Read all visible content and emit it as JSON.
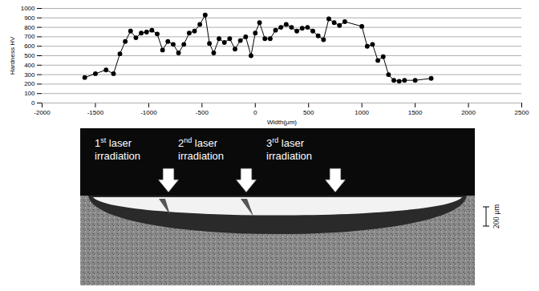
{
  "chart_data": {
    "type": "line",
    "x_label": "Width(μm)",
    "y_label": "Hardness HV",
    "x": [
      -1600,
      -1500,
      -1400,
      -1330,
      -1270,
      -1220,
      -1170,
      -1120,
      -1070,
      -1020,
      -970,
      -920,
      -870,
      -820,
      -770,
      -720,
      -670,
      -620,
      -570,
      -520,
      -470,
      -430,
      -390,
      -340,
      -290,
      -240,
      -190,
      -140,
      -90,
      -40,
      0,
      40,
      90,
      140,
      190,
      240,
      290,
      340,
      390,
      440,
      490,
      540,
      590,
      640,
      690,
      740,
      790,
      840,
      1000,
      1050,
      1100,
      1150,
      1200,
      1250,
      1300,
      1350,
      1400,
      1500,
      1650
    ],
    "values": [
      270,
      310,
      350,
      310,
      520,
      650,
      760,
      690,
      740,
      750,
      770,
      730,
      560,
      650,
      620,
      530,
      620,
      740,
      760,
      830,
      930,
      630,
      530,
      680,
      640,
      680,
      570,
      660,
      700,
      500,
      740,
      850,
      680,
      680,
      770,
      800,
      830,
      800,
      760,
      790,
      800,
      760,
      710,
      670,
      890,
      850,
      820,
      860,
      810,
      600,
      620,
      450,
      490,
      300,
      240,
      230,
      240,
      240,
      260
    ],
    "xlim": [
      -2000,
      2500
    ],
    "xticks": [
      -2000,
      -1500,
      -1000,
      -500,
      0,
      500,
      1000,
      1500,
      2000,
      2500
    ],
    "ylim": [
      0,
      1000
    ],
    "yticks": [
      0,
      100,
      200,
      300,
      400,
      500,
      600,
      700,
      800,
      900,
      1000
    ],
    "grid": true,
    "color": "#000000",
    "marker": "circle"
  },
  "micrograph": {
    "labels": [
      "1st laser irradiation",
      "2nd laser irradiation",
      "3rd laser irradiation"
    ],
    "scale_bar": "200 μm"
  }
}
